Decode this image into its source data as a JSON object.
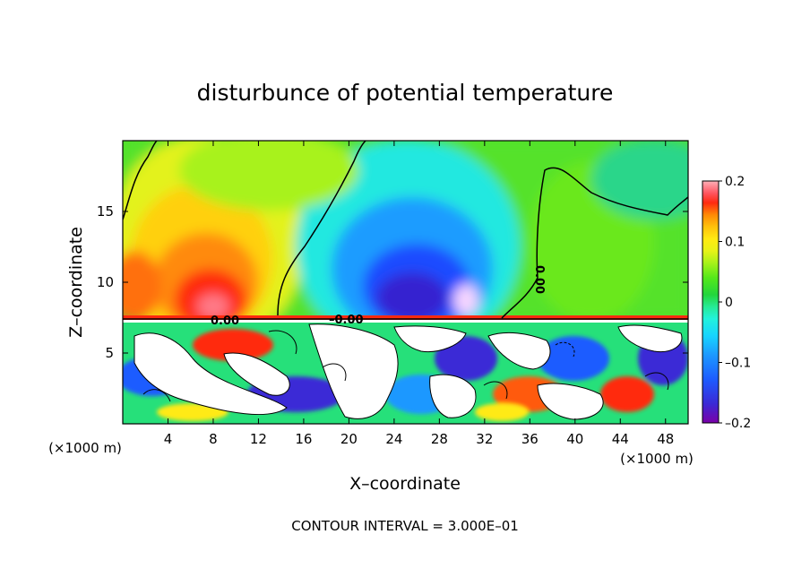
{
  "chart_data": {
    "type": "heatmap",
    "title": "disturbunce of potential temperature",
    "xlabel": "X–coordinate",
    "ylabel": "Z–coordinate",
    "x_unit": "(×1000 m)",
    "z_unit": "(×1000 m)",
    "xlim": [
      0,
      50
    ],
    "ylim": [
      0,
      20
    ],
    "x_ticks": [
      4,
      8,
      12,
      16,
      20,
      24,
      28,
      32,
      36,
      40,
      44,
      48
    ],
    "x_tick_labels": [
      "4",
      "8",
      "12",
      "16",
      "20",
      "24",
      "28",
      "32",
      "36",
      "40",
      "44",
      "48"
    ],
    "y_ticks": [
      5,
      10,
      15
    ],
    "y_tick_labels": [
      "5",
      "10",
      "15"
    ],
    "colorbar": {
      "range": [
        -0.2,
        0.2
      ],
      "tick_values": [
        0.2,
        0.1,
        0,
        -0.1,
        -0.2
      ],
      "tick_labels": [
        "0.2",
        "0.1",
        "0",
        "–0.1",
        "–0.2"
      ],
      "colors": [
        "#7b00a8",
        "#3a2ad6",
        "#1d5cff",
        "#1c98ff",
        "#17d4ff",
        "#22f2dc",
        "#27ea96",
        "#23d63c",
        "#55e81a",
        "#a6f21a",
        "#e6f218",
        "#ffea12",
        "#ffc20c",
        "#ff9a06",
        "#ff6a06",
        "#ff2a10",
        "#ff5560",
        "#ffb0b8"
      ]
    },
    "contour_labels": [
      "0.00",
      "–0.00",
      "0.00"
    ],
    "footnote": "CONTOUR INTERVAL = 3.000E–01"
  }
}
